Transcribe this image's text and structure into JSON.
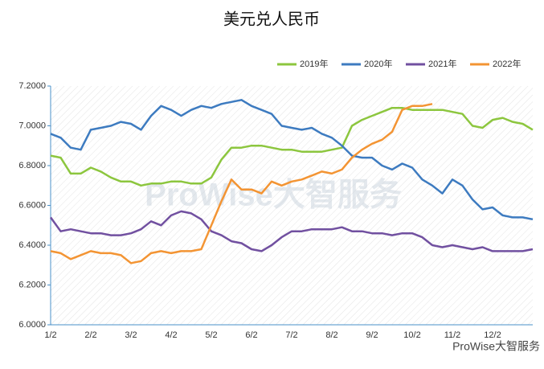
{
  "chart_data": {
    "type": "line",
    "title": "美元兑人民币",
    "categories": [
      "1/2",
      null,
      null,
      null,
      "2/2",
      null,
      null,
      null,
      "3/2",
      null,
      null,
      null,
      "4/2",
      null,
      null,
      null,
      "5/2",
      null,
      null,
      null,
      "6/2",
      null,
      null,
      null,
      "7/2",
      null,
      null,
      null,
      "8/2",
      null,
      null,
      null,
      "9/2",
      null,
      null,
      null,
      "10/2",
      null,
      null,
      null,
      "11/2",
      null,
      null,
      null,
      "12/2",
      null,
      null,
      null,
      null
    ],
    "series": [
      {
        "name": "2019年",
        "color": "#8cc63e",
        "values": [
          6.85,
          6.84,
          6.76,
          6.76,
          6.79,
          6.77,
          6.74,
          6.72,
          6.72,
          6.7,
          6.71,
          6.71,
          6.72,
          6.72,
          6.71,
          6.71,
          6.74,
          6.83,
          6.89,
          6.89,
          6.9,
          6.9,
          6.89,
          6.88,
          6.88,
          6.87,
          6.87,
          6.87,
          6.88,
          6.89,
          7.0,
          7.03,
          7.05,
          7.07,
          7.09,
          7.09,
          7.08,
          7.08,
          7.08,
          7.08,
          7.07,
          7.06,
          7.0,
          6.99,
          7.03,
          7.04,
          7.02,
          7.01,
          6.98
        ]
      },
      {
        "name": "2020年",
        "color": "#3d7bc0",
        "values": [
          6.96,
          6.94,
          6.89,
          6.88,
          6.98,
          6.99,
          7.0,
          7.02,
          7.01,
          6.98,
          7.05,
          7.1,
          7.08,
          7.05,
          7.08,
          7.1,
          7.09,
          7.11,
          7.12,
          7.13,
          7.1,
          7.08,
          7.06,
          7.0,
          6.99,
          6.98,
          6.99,
          6.96,
          6.94,
          6.9,
          6.85,
          6.84,
          6.84,
          6.8,
          6.78,
          6.81,
          6.79,
          6.73,
          6.7,
          6.66,
          6.73,
          6.7,
          6.63,
          6.58,
          6.59,
          6.55,
          6.54,
          6.54,
          6.53
        ]
      },
      {
        "name": "2021年",
        "color": "#7150a0",
        "values": [
          6.54,
          6.47,
          6.48,
          6.47,
          6.46,
          6.46,
          6.45,
          6.45,
          6.46,
          6.48,
          6.52,
          6.5,
          6.55,
          6.57,
          6.56,
          6.53,
          6.47,
          6.45,
          6.42,
          6.41,
          6.38,
          6.37,
          6.4,
          6.44,
          6.47,
          6.47,
          6.48,
          6.48,
          6.48,
          6.49,
          6.47,
          6.47,
          6.46,
          6.46,
          6.45,
          6.46,
          6.46,
          6.44,
          6.4,
          6.39,
          6.4,
          6.39,
          6.38,
          6.39,
          6.37,
          6.37,
          6.37,
          6.37,
          6.38
        ]
      },
      {
        "name": "2022年",
        "color": "#f39433",
        "values": [
          6.37,
          6.36,
          6.33,
          6.35,
          6.37,
          6.36,
          6.36,
          6.35,
          6.31,
          6.32,
          6.36,
          6.37,
          6.36,
          6.37,
          6.37,
          6.38,
          6.5,
          6.62,
          6.73,
          6.68,
          6.68,
          6.66,
          6.72,
          6.7,
          6.72,
          6.73,
          6.75,
          6.77,
          6.76,
          6.78,
          6.84,
          6.88,
          6.91,
          6.93,
          6.97,
          7.08,
          7.1,
          7.1,
          7.11,
          null,
          null,
          null,
          null,
          null,
          null,
          null,
          null,
          null,
          null
        ]
      }
    ],
    "ylim": [
      6.0,
      7.2
    ],
    "yticks": [
      {
        "value": 6.0,
        "label": "6.0000"
      },
      {
        "value": 6.2,
        "label": "6.2000"
      },
      {
        "value": 6.4,
        "label": "6.4000"
      },
      {
        "value": 6.6,
        "label": "6.6000"
      },
      {
        "value": 6.8,
        "label": "6.8000"
      },
      {
        "value": 7.0,
        "label": "7.0000"
      },
      {
        "value": 7.2,
        "label": "7.2000"
      }
    ],
    "legend": "top-right",
    "watermark": "ProWise大智服务",
    "footer": "ProWise大智服务"
  }
}
